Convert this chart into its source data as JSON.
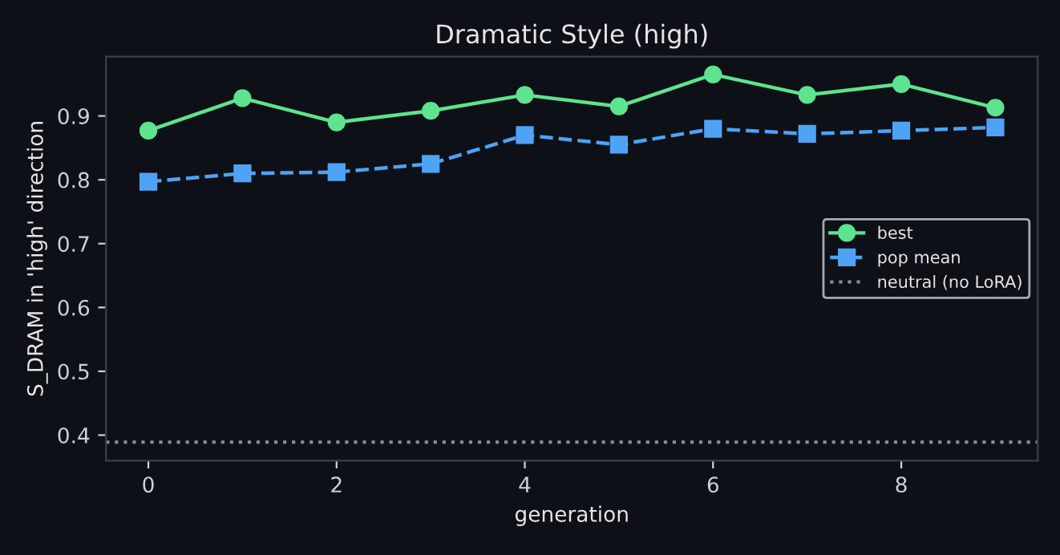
{
  "chart_data": {
    "type": "line",
    "title": "Dramatic Style (high)",
    "xlabel": "generation",
    "ylabel": "S_DRAM in 'high' direction",
    "x": [
      0,
      1,
      2,
      3,
      4,
      5,
      6,
      7,
      8,
      9
    ],
    "series": [
      {
        "name": "best",
        "color": "#5ee38f",
        "marker": "circle",
        "line_style": "solid",
        "values": [
          0.877,
          0.928,
          0.89,
          0.908,
          0.933,
          0.915,
          0.965,
          0.933,
          0.95,
          0.913
        ]
      },
      {
        "name": "pop mean",
        "color": "#4fa3f7",
        "marker": "square",
        "line_style": "dashed",
        "values": [
          0.797,
          0.81,
          0.812,
          0.825,
          0.87,
          0.855,
          0.88,
          0.872,
          0.877,
          0.882
        ]
      }
    ],
    "ref_lines": [
      {
        "axis": "y",
        "value": 0.389,
        "label": "neutral (no LoRA)",
        "color": "#8b8f96",
        "line_style": "dotted"
      }
    ],
    "xlim": [
      -0.45,
      9.45
    ],
    "ylim": [
      0.36,
      0.993
    ],
    "xticks": [
      0,
      2,
      4,
      6,
      8
    ],
    "yticks": [
      0.4,
      0.5,
      0.6,
      0.7,
      0.8,
      0.9
    ],
    "grid": false,
    "legend": "right"
  }
}
